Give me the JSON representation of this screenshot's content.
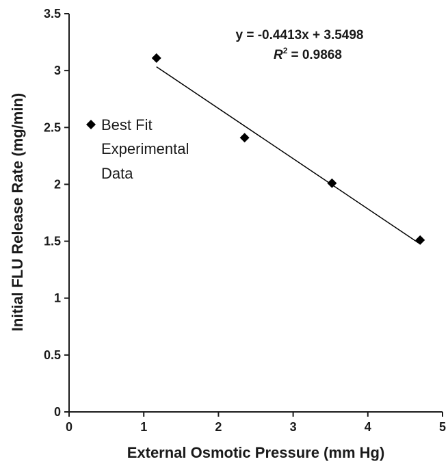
{
  "chart_data": {
    "type": "scatter",
    "xlabel": "External Osmotic Pressure (mm Hg)",
    "ylabel": "Initial FLU Release Rate (mg/min)",
    "xlim": [
      0,
      5
    ],
    "ylim": [
      0,
      3.5
    ],
    "x_ticks": [
      "0",
      "1",
      "2",
      "3",
      "4",
      "5"
    ],
    "y_ticks": [
      "0",
      "0.5",
      "1",
      "1.5",
      "2",
      "2.5",
      "3",
      "3.5"
    ],
    "grid": false,
    "legend_position": "left-middle",
    "legend_lines": [
      "Best Fit",
      "Experimental",
      "Data"
    ],
    "series": [
      {
        "x": [
          1.17,
          2.35,
          3.52,
          4.7
        ],
        "y": [
          3.11,
          2.41,
          2.01,
          1.51
        ]
      }
    ],
    "trendline": {
      "slope": -0.4413,
      "intercept": 3.5498,
      "x_range": [
        1.17,
        4.7
      ]
    },
    "equation": "y = -0.4413x + 3.5498",
    "r2_symbol": "R",
    "r2_exponent": "2",
    "r2_value": "= 0.9868",
    "colors": {
      "marker": "#000000",
      "line": "#000000",
      "axis": "#1a1a1a"
    }
  }
}
